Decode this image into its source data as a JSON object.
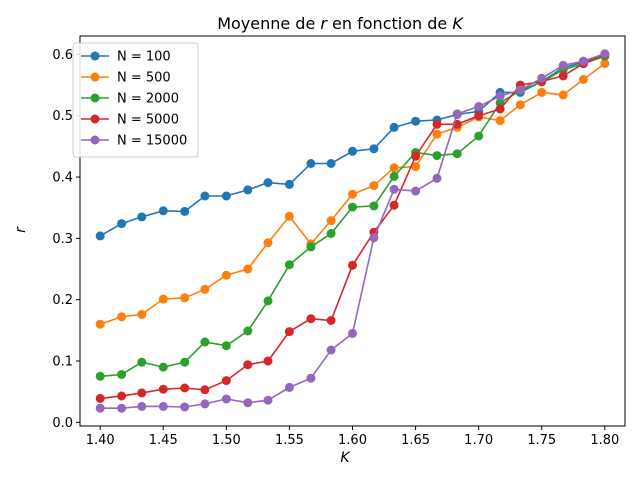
{
  "chart_data": {
    "type": "line",
    "title": {
      "prefix": "Moyenne de ",
      "var_r": "r",
      "middle": " en fonction de ",
      "var_k": "K"
    },
    "xlabel": "K",
    "ylabel": "r",
    "xlim": [
      1.384,
      1.816
    ],
    "ylim": [
      -0.006,
      0.63
    ],
    "xticks": [
      1.4,
      1.45,
      1.5,
      1.55,
      1.6,
      1.65,
      1.7,
      1.75,
      1.8
    ],
    "xtick_labels": [
      "1.40",
      "1.45",
      "1.50",
      "1.55",
      "1.60",
      "1.65",
      "1.70",
      "1.75",
      "1.80"
    ],
    "yticks": [
      0.0,
      0.1,
      0.2,
      0.3,
      0.4,
      0.5,
      0.6
    ],
    "ytick_labels": [
      "0.0",
      "0.1",
      "0.2",
      "0.3",
      "0.4",
      "0.5",
      "0.6"
    ],
    "grid": false,
    "legend_position": "top-left",
    "x": [
      1.4,
      1.417,
      1.433,
      1.45,
      1.467,
      1.483,
      1.5,
      1.517,
      1.533,
      1.55,
      1.567,
      1.583,
      1.6,
      1.617,
      1.633,
      1.65,
      1.667,
      1.683,
      1.7,
      1.717,
      1.733,
      1.75,
      1.767,
      1.783,
      1.8
    ],
    "series": [
      {
        "name": "N = 100",
        "color": "#1f77b4",
        "values": [
          0.304,
          0.324,
          0.335,
          0.345,
          0.344,
          0.369,
          0.369,
          0.379,
          0.391,
          0.388,
          0.422,
          0.422,
          0.442,
          0.446,
          0.481,
          0.491,
          0.493,
          0.502,
          0.507,
          0.538,
          0.538,
          0.556,
          0.578,
          0.588,
          0.598
        ]
      },
      {
        "name": "N = 500",
        "color": "#ff7f0e",
        "values": [
          0.16,
          0.172,
          0.176,
          0.201,
          0.203,
          0.217,
          0.24,
          0.25,
          0.293,
          0.336,
          0.291,
          0.329,
          0.372,
          0.386,
          0.415,
          0.417,
          0.47,
          0.481,
          0.498,
          0.492,
          0.518,
          0.538,
          0.534,
          0.559,
          0.585
        ]
      },
      {
        "name": "N = 2000",
        "color": "#2ca02c",
        "values": [
          0.075,
          0.078,
          0.098,
          0.09,
          0.098,
          0.131,
          0.125,
          0.149,
          0.198,
          0.257,
          0.286,
          0.308,
          0.351,
          0.353,
          0.401,
          0.44,
          0.435,
          0.438,
          0.467,
          0.521,
          0.541,
          0.555,
          0.575,
          0.585,
          0.597
        ]
      },
      {
        "name": "N = 5000",
        "color": "#d62728",
        "values": [
          0.039,
          0.043,
          0.048,
          0.054,
          0.056,
          0.053,
          0.068,
          0.094,
          0.1,
          0.148,
          0.169,
          0.166,
          0.256,
          0.31,
          0.354,
          0.434,
          0.486,
          0.486,
          0.5,
          0.511,
          0.55,
          0.556,
          0.565,
          0.585,
          0.6
        ]
      },
      {
        "name": "N = 15000",
        "color": "#9467bd",
        "values": [
          0.023,
          0.023,
          0.026,
          0.026,
          0.025,
          0.03,
          0.038,
          0.032,
          0.036,
          0.057,
          0.072,
          0.118,
          0.145,
          0.301,
          0.38,
          0.377,
          0.398,
          0.503,
          0.515,
          0.532,
          0.542,
          0.561,
          0.582,
          0.589,
          0.601
        ]
      }
    ]
  }
}
